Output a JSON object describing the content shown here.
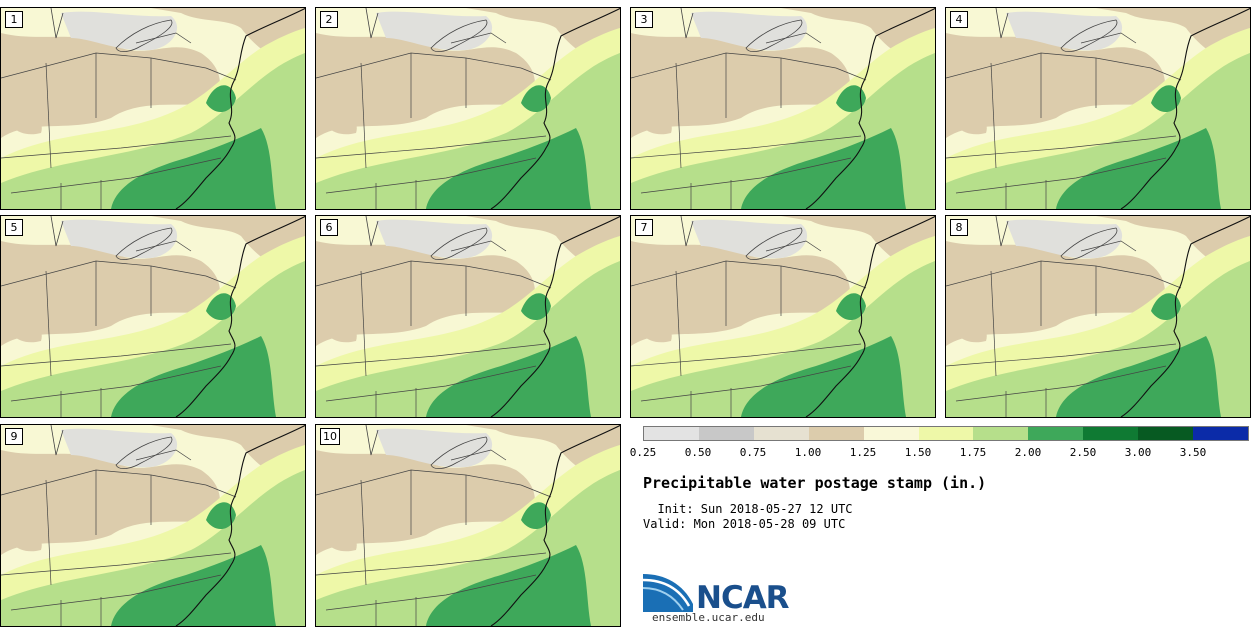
{
  "panels": [
    {
      "label": "1"
    },
    {
      "label": "2"
    },
    {
      "label": "3"
    },
    {
      "label": "4"
    },
    {
      "label": "5"
    },
    {
      "label": "6"
    },
    {
      "label": "7"
    },
    {
      "label": "8"
    },
    {
      "label": "9"
    },
    {
      "label": "10"
    }
  ],
  "legend": {
    "ticks": [
      "0.25",
      "0.50",
      "0.75",
      "1.00",
      "1.25",
      "1.50",
      "1.75",
      "2.00",
      "2.50",
      "3.00",
      "3.50"
    ],
    "colors": [
      "#e3e3e3",
      "#c8c8c8",
      "#e6e1d1",
      "#dcccac",
      "#f9f8d8",
      "#eef8a8",
      "#b6df8b",
      "#3ea85a",
      "#0f7a33",
      "#075a22",
      "#0b2ba8"
    ]
  },
  "title": "Precipitable water postage stamp (in.)",
  "init": "  Init: Sun 2018-05-27 12 UTC",
  "valid": "Valid: Mon 2018-05-28 09 UTC",
  "logo": {
    "name": "NCAR",
    "url": "ensemble.ucar.edu"
  },
  "map_colors": {
    "light_gray": "#e3e3e3",
    "tan": "#dcccac",
    "cream": "#f9f8d8",
    "light_yellow_green": "#eef8a8",
    "light_green": "#b6df8b",
    "mid_green": "#3ea85a",
    "state_lines": "#444444",
    "logo_blue": "#1a4f8c"
  }
}
